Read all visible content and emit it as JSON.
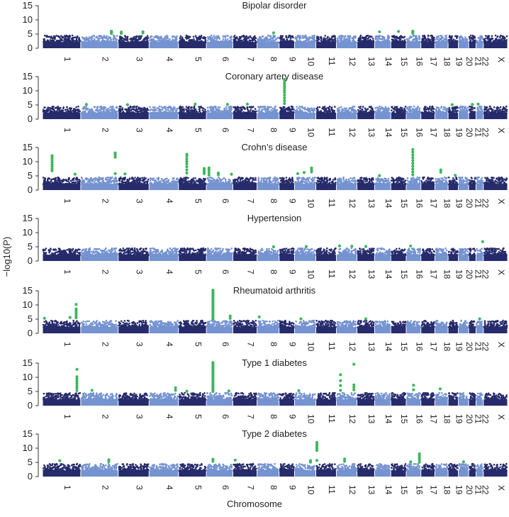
{
  "figure": {
    "xlabel": "Chromosome",
    "ylabel": "−log10(P)"
  },
  "chart_data": [
    {
      "type": "scatter",
      "title": "Bipolar disorder",
      "ylim": [
        0,
        15
      ],
      "yticks": [
        0,
        5,
        10,
        15
      ],
      "chromosomes": [
        "1",
        "2",
        "3",
        "4",
        "5",
        "6",
        "7",
        "8",
        "9",
        "10",
        "11",
        "12",
        "13",
        "14",
        "15",
        "16",
        "17",
        "18",
        "19",
        "20",
        "21",
        "22",
        "X"
      ],
      "background_max": 4.5,
      "colors": {
        "odd_chromosome": "#262b6b",
        "even_chromosome": "#7593d0",
        "significant": "#3fb55e"
      },
      "significant_hits": [
        {
          "chromosome": "2",
          "pos": 0.82,
          "values": [
            5.2,
            5.4,
            5.6,
            5.8,
            6.0
          ]
        },
        {
          "chromosome": "3",
          "pos": 0.1,
          "values": [
            5.2,
            5.7
          ]
        },
        {
          "chromosome": "3",
          "pos": 0.8,
          "values": [
            5.4,
            5.8
          ]
        },
        {
          "chromosome": "8",
          "pos": 0.75,
          "values": [
            5.4
          ]
        },
        {
          "chromosome": "14",
          "pos": 0.3,
          "values": [
            5.8
          ]
        },
        {
          "chromosome": "15",
          "pos": 0.5,
          "values": [
            5.9
          ]
        },
        {
          "chromosome": "16",
          "pos": 0.45,
          "values": [
            5.2,
            5.6,
            6.0
          ]
        }
      ]
    },
    {
      "type": "scatter",
      "title": "Coronary artery disease",
      "ylim": [
        0,
        15
      ],
      "yticks": [
        0,
        5,
        10,
        15
      ],
      "chromosomes": [
        "1",
        "2",
        "3",
        "4",
        "5",
        "6",
        "7",
        "8",
        "9",
        "10",
        "11",
        "12",
        "13",
        "14",
        "15",
        "16",
        "17",
        "18",
        "19",
        "20",
        "21",
        "22",
        "X"
      ],
      "background_max": 4.5,
      "colors": {
        "odd_chromosome": "#262b6b",
        "even_chromosome": "#7593d0",
        "significant": "#3fb55e"
      },
      "significant_hits": [
        {
          "chromosome": "2",
          "pos": 0.15,
          "values": [
            5.2
          ]
        },
        {
          "chromosome": "3",
          "pos": 0.3,
          "values": [
            5.1
          ]
        },
        {
          "chromosome": "5",
          "pos": 0.6,
          "values": [
            5.3
          ]
        },
        {
          "chromosome": "6",
          "pos": 0.8,
          "values": [
            5.2
          ]
        },
        {
          "chromosome": "7",
          "pos": 0.6,
          "values": [
            5.3
          ]
        },
        {
          "chromosome": "9",
          "pos": 0.35,
          "values": [
            5.5,
            6.5,
            7.5,
            8.5,
            9.5,
            10.2,
            11.0,
            11.8,
            12.5,
            13.3,
            14.0
          ]
        },
        {
          "chromosome": "19",
          "pos": 0.4,
          "values": [
            5.1
          ]
        },
        {
          "chromosome": "21",
          "pos": 0.5,
          "values": [
            5.2
          ]
        },
        {
          "chromosome": "22",
          "pos": 0.3,
          "values": [
            5.3
          ]
        }
      ]
    },
    {
      "type": "scatter",
      "title": "Crohn’s disease",
      "ylim": [
        0,
        15
      ],
      "yticks": [
        0,
        5,
        10,
        15
      ],
      "chromosomes": [
        "1",
        "2",
        "3",
        "4",
        "5",
        "6",
        "7",
        "8",
        "9",
        "10",
        "11",
        "12",
        "13",
        "14",
        "15",
        "16",
        "17",
        "18",
        "19",
        "20",
        "21",
        "22",
        "X"
      ],
      "background_max": 4.5,
      "colors": {
        "odd_chromosome": "#262b6b",
        "even_chromosome": "#7593d0",
        "significant": "#3fb55e"
      },
      "significant_hits": [
        {
          "chromosome": "1",
          "pos": 0.25,
          "values": [
            6.8,
            7.5,
            8.3,
            9.0,
            9.8,
            10.6,
            11.4,
            12.1
          ]
        },
        {
          "chromosome": "1",
          "pos": 0.85,
          "values": [
            5.6
          ]
        },
        {
          "chromosome": "2",
          "pos": 0.92,
          "values": [
            5.8,
            11.6,
            12.4,
            13.1
          ]
        },
        {
          "chromosome": "3",
          "pos": 0.22,
          "values": [
            5.7
          ]
        },
        {
          "chromosome": "5",
          "pos": 0.3,
          "values": [
            6.0,
            7.1,
            8.2,
            9.2,
            10.1,
            11.0,
            12.0,
            12.6
          ]
        },
        {
          "chromosome": "5",
          "pos": 0.92,
          "values": [
            5.8,
            6.4,
            7.0,
            7.6
          ]
        },
        {
          "chromosome": "6",
          "pos": 0.1,
          "values": [
            5.3,
            6.2,
            7.1,
            7.8
          ]
        },
        {
          "chromosome": "6",
          "pos": 0.45,
          "values": [
            5.4,
            6.0
          ]
        },
        {
          "chromosome": "6",
          "pos": 0.95,
          "values": [
            5.6
          ]
        },
        {
          "chromosome": "10",
          "pos": 0.15,
          "values": [
            5.8
          ]
        },
        {
          "chromosome": "10",
          "pos": 0.45,
          "values": [
            6.2
          ]
        },
        {
          "chromosome": "10",
          "pos": 0.8,
          "values": [
            6.4,
            7.1,
            7.8
          ]
        },
        {
          "chromosome": "14",
          "pos": 0.3,
          "values": [
            5.1
          ]
        },
        {
          "chromosome": "16",
          "pos": 0.45,
          "values": [
            5.4,
            6.4,
            7.4,
            8.4,
            9.4,
            10.4,
            11.4,
            12.4,
            13.4,
            14.3
          ]
        },
        {
          "chromosome": "18",
          "pos": 0.45,
          "values": [
            6.3,
            7.1
          ]
        },
        {
          "chromosome": "19",
          "pos": 0.7,
          "values": [
            5.2
          ]
        }
      ]
    },
    {
      "type": "scatter",
      "title": "Hypertension",
      "ylim": [
        0,
        15
      ],
      "yticks": [
        0,
        5,
        10,
        15
      ],
      "chromosomes": [
        "1",
        "2",
        "3",
        "4",
        "5",
        "6",
        "7",
        "8",
        "9",
        "10",
        "11",
        "12",
        "13",
        "14",
        "15",
        "16",
        "17",
        "18",
        "19",
        "20",
        "21",
        "22",
        "X"
      ],
      "background_max": 4.5,
      "colors": {
        "odd_chromosome": "#262b6b",
        "even_chromosome": "#7593d0",
        "significant": "#3fb55e"
      },
      "significant_hits": [
        {
          "chromosome": "8",
          "pos": 0.75,
          "values": [
            5.0
          ]
        },
        {
          "chromosome": "10",
          "pos": 0.55,
          "values": [
            5.1
          ]
        },
        {
          "chromosome": "12",
          "pos": 0.15,
          "values": [
            5.3
          ]
        },
        {
          "chromosome": "12",
          "pos": 0.75,
          "values": [
            5.2
          ]
        },
        {
          "chromosome": "13",
          "pos": 0.5,
          "values": [
            5.1
          ]
        },
        {
          "chromosome": "16",
          "pos": 0.3,
          "values": [
            5.3
          ]
        },
        {
          "chromosome": "22",
          "pos": 0.9,
          "values": [
            6.8
          ]
        }
      ]
    },
    {
      "type": "scatter",
      "title": "Rheumatoid arthritis",
      "ylim": [
        0,
        15
      ],
      "yticks": [
        0,
        5,
        10,
        15
      ],
      "chromosomes": [
        "1",
        "2",
        "3",
        "4",
        "5",
        "6",
        "7",
        "8",
        "9",
        "10",
        "11",
        "12",
        "13",
        "14",
        "15",
        "16",
        "17",
        "18",
        "19",
        "20",
        "21",
        "22",
        "X"
      ],
      "background_max": 4.5,
      "colors": {
        "odd_chromosome": "#262b6b",
        "even_chromosome": "#7593d0",
        "significant": "#3fb55e"
      },
      "significant_hits": [
        {
          "chromosome": "1",
          "pos": 0.05,
          "values": [
            5.3
          ]
        },
        {
          "chromosome": "1",
          "pos": 0.72,
          "values": [
            5.6
          ]
        },
        {
          "chromosome": "1",
          "pos": 0.88,
          "values": [
            5.5,
            6.3,
            7.1,
            7.9,
            8.6,
            10.2
          ]
        },
        {
          "chromosome": "6",
          "pos": 0.25,
          "values": [
            5.0,
            5.6,
            6.2,
            6.8,
            7.4,
            8.0,
            8.6,
            9.2,
            9.8,
            10.4,
            11.0,
            11.6,
            12.2,
            12.8,
            13.4,
            14.0,
            14.6,
            15.2
          ]
        },
        {
          "chromosome": "6",
          "pos": 0.9,
          "values": [
            5.3,
            6.1
          ]
        },
        {
          "chromosome": "8",
          "pos": 0.1,
          "values": [
            5.8
          ]
        },
        {
          "chromosome": "10",
          "pos": 0.3,
          "values": [
            5.1
          ]
        },
        {
          "chromosome": "13",
          "pos": 0.5,
          "values": [
            5.1
          ]
        },
        {
          "chromosome": "22",
          "pos": 0.5,
          "values": [
            5.1
          ]
        }
      ]
    },
    {
      "type": "scatter",
      "title": "Type 1 diabetes",
      "ylim": [
        0,
        15
      ],
      "yticks": [
        0,
        5,
        10,
        15
      ],
      "chromosomes": [
        "1",
        "2",
        "3",
        "4",
        "5",
        "6",
        "7",
        "8",
        "9",
        "10",
        "11",
        "12",
        "13",
        "14",
        "15",
        "16",
        "17",
        "18",
        "19",
        "20",
        "21",
        "22",
        "X"
      ],
      "background_max": 4.5,
      "colors": {
        "odd_chromosome": "#262b6b",
        "even_chromosome": "#7593d0",
        "significant": "#3fb55e"
      },
      "significant_hits": [
        {
          "chromosome": "1",
          "pos": 0.9,
          "values": [
            5.3,
            6.2,
            7.0,
            7.8,
            8.6,
            9.4,
            10.2,
            12.8
          ]
        },
        {
          "chromosome": "2",
          "pos": 0.3,
          "values": [
            5.4
          ]
        },
        {
          "chromosome": "4",
          "pos": 0.9,
          "values": [
            5.4,
            6.3
          ]
        },
        {
          "chromosome": "5",
          "pos": 0.3,
          "values": [
            5.1
          ]
        },
        {
          "chromosome": "6",
          "pos": 0.25,
          "values": [
            5.0,
            5.6,
            6.2,
            6.8,
            7.4,
            8.0,
            8.6,
            9.2,
            9.8,
            10.4,
            11.0,
            11.6,
            12.2,
            12.8,
            13.4,
            14.0,
            14.6,
            15.2
          ]
        },
        {
          "chromosome": "6",
          "pos": 0.85,
          "values": [
            5.2
          ]
        },
        {
          "chromosome": "10",
          "pos": 0.2,
          "values": [
            5.3
          ]
        },
        {
          "chromosome": "12",
          "pos": 0.2,
          "values": [
            5.4,
            7.1,
            8.8,
            10.9
          ]
        },
        {
          "chromosome": "12",
          "pos": 0.85,
          "values": [
            5.6,
            6.5,
            7.3,
            14.6
          ]
        },
        {
          "chromosome": "16",
          "pos": 0.5,
          "values": [
            5.6,
            7.2
          ]
        },
        {
          "chromosome": "18",
          "pos": 0.4,
          "values": [
            5.9
          ]
        }
      ]
    },
    {
      "type": "scatter",
      "title": "Type 2 diabetes",
      "ylim": [
        0,
        15
      ],
      "yticks": [
        0,
        5,
        10,
        15
      ],
      "chromosomes": [
        "1",
        "2",
        "3",
        "4",
        "5",
        "6",
        "7",
        "8",
        "9",
        "10",
        "11",
        "12",
        "13",
        "14",
        "15",
        "16",
        "17",
        "18",
        "19",
        "20",
        "21",
        "22",
        "X"
      ],
      "background_max": 4.5,
      "colors": {
        "odd_chromosome": "#262b6b",
        "even_chromosome": "#7593d0",
        "significant": "#3fb55e"
      },
      "significant_hits": [
        {
          "chromosome": "1",
          "pos": 0.45,
          "values": [
            5.6
          ]
        },
        {
          "chromosome": "2",
          "pos": 0.75,
          "values": [
            5.3,
            5.9
          ]
        },
        {
          "chromosome": "6",
          "pos": 0.25,
          "values": [
            5.4,
            6.1
          ]
        },
        {
          "chromosome": "7",
          "pos": 0.1,
          "values": [
            5.8
          ]
        },
        {
          "chromosome": "10",
          "pos": 0.75,
          "values": [
            5.1,
            5.6
          ]
        },
        {
          "chromosome": "11",
          "pos": 0.05,
          "values": [
            5.7,
            9.2,
            9.9,
            10.6,
            11.3,
            12.0
          ]
        },
        {
          "chromosome": "12",
          "pos": 0.4,
          "values": [
            5.4,
            6.2
          ]
        },
        {
          "chromosome": "16",
          "pos": 0.3,
          "values": [
            5.2
          ]
        },
        {
          "chromosome": "16",
          "pos": 0.9,
          "values": [
            5.1,
            5.9,
            6.6,
            7.3,
            8.0
          ]
        },
        {
          "chromosome": "20",
          "pos": 0.5,
          "values": [
            5.2
          ]
        }
      ]
    }
  ]
}
